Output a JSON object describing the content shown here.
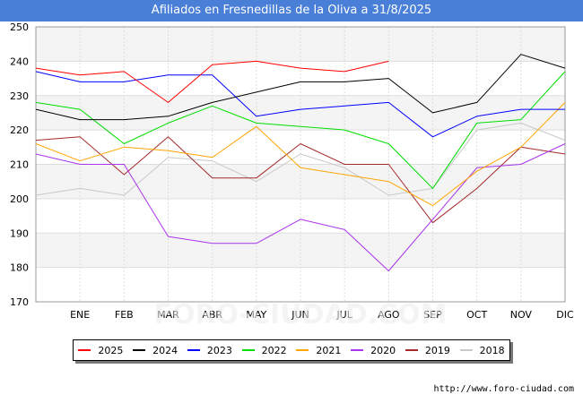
{
  "title": "Afiliados en Fresnedillas de la Oliva a 31/8/2025",
  "footer_url": "http://www.foro-ciudad.com",
  "watermark": "FORO-CIUDAD.COM",
  "chart_data": {
    "type": "line",
    "title": "Afiliados en Fresnedillas de la Oliva a 31/8/2025",
    "categories": [
      "",
      "ENE",
      "FEB",
      "MAR",
      "ABR",
      "MAY",
      "JUN",
      "JUL",
      "AGO",
      "SEP",
      "OCT",
      "NOV",
      "DIC"
    ],
    "ylim": [
      170,
      250
    ],
    "yticks": [
      170,
      180,
      190,
      200,
      210,
      220,
      230,
      240,
      250
    ],
    "grid": true,
    "legend_position": "bottom",
    "series": [
      {
        "name": "2025",
        "color": "#ff0000",
        "values": [
          238,
          236,
          237,
          228,
          239,
          240,
          238,
          237,
          240,
          null,
          null,
          null,
          null
        ]
      },
      {
        "name": "2024",
        "color": "#000000",
        "values": [
          226,
          223,
          223,
          224,
          228,
          231,
          234,
          234,
          235,
          225,
          228,
          242,
          238
        ]
      },
      {
        "name": "2023",
        "color": "#0000ff",
        "values": [
          237,
          234,
          234,
          236,
          236,
          224,
          226,
          227,
          228,
          218,
          224,
          226,
          226
        ]
      },
      {
        "name": "2022",
        "color": "#00dd00",
        "values": [
          228,
          226,
          216,
          222,
          227,
          222,
          221,
          220,
          216,
          203,
          222,
          223,
          237
        ]
      },
      {
        "name": "2021",
        "color": "#ffa500",
        "values": [
          216,
          211,
          215,
          214,
          212,
          221,
          209,
          207,
          205,
          198,
          208,
          215,
          228
        ]
      },
      {
        "name": "2020",
        "color": "#aa33ee",
        "values": [
          213,
          210,
          210,
          189,
          187,
          187,
          194,
          191,
          179,
          194,
          209,
          210,
          216
        ]
      },
      {
        "name": "2019",
        "color": "#a52a2a",
        "values": [
          217,
          218,
          207,
          218,
          206,
          206,
          216,
          210,
          210,
          193,
          203,
          215,
          213
        ]
      },
      {
        "name": "2018",
        "color": "#c8c8c8",
        "values": [
          201,
          203,
          201,
          212,
          211,
          205,
          213,
          209,
          201,
          203,
          220,
          222,
          217
        ]
      }
    ]
  }
}
